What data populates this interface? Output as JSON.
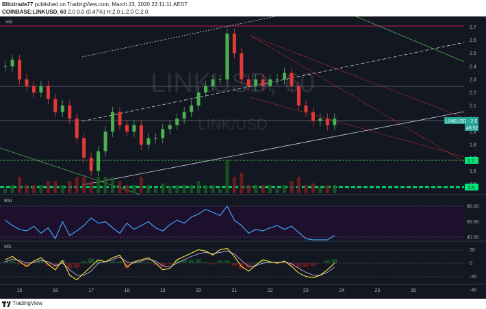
{
  "header": {
    "publisher": "Blitztrade77",
    "published_text": "published on TradingView.com, March 23, 2020 22:11:11 AEDT",
    "symbol": "COINBASE:LINKUSD, 60",
    "ohlc": "2.0 0.0 (0.47%) H:2.0 L:2.0 C:2.0"
  },
  "price_pane": {
    "vol_label": "Vol",
    "watermark_symbol": "LINKUSD, 60",
    "watermark_name": "LINK/USD",
    "axis_ticks": [
      "2.7",
      "2.6",
      "2.5",
      "2.4",
      "2.3",
      "2.2",
      "2.1",
      "2.0",
      "1.9",
      "1.8",
      "1.7",
      "1.6",
      "1.5"
    ],
    "last_price_tag": "LINKUSD · 2.0",
    "countdown_tag": "48:52",
    "level_tags": [
      "1.7",
      "1.5"
    ]
  },
  "rsi_pane": {
    "label": "RSI",
    "axis_ticks": [
      "80.00",
      "60.00",
      "40.00"
    ]
  },
  "macd_pane": {
    "label": "MS",
    "axis_ticks": [
      "20",
      "0",
      "-20",
      "-40"
    ]
  },
  "time_axis": {
    "labels": [
      "15",
      "16",
      "17",
      "18",
      "19",
      "20",
      "21",
      "22",
      "23",
      "24",
      "25",
      "26"
    ]
  },
  "footer": {
    "logo_text": "TradingView"
  },
  "chart_data": {
    "type": "line",
    "title": "COINBASE:LINKUSD, 60",
    "xlabel": "",
    "ylabel": "",
    "price_range": [
      1.45,
      2.75
    ],
    "x": [
      14.6,
      14.8,
      15.0,
      15.2,
      15.4,
      15.6,
      15.8,
      16.0,
      16.2,
      16.4,
      16.6,
      16.8,
      17.0,
      17.2,
      17.4,
      17.6,
      17.8,
      18.0,
      18.2,
      18.4,
      18.6,
      18.8,
      19.0,
      19.2,
      19.4,
      19.6,
      19.8,
      20.0,
      20.2,
      20.4,
      20.6,
      20.8,
      21.0,
      21.2,
      21.4,
      21.6,
      21.8,
      22.0,
      22.2,
      22.4,
      22.6,
      22.8,
      23.0,
      23.2,
      23.4,
      23.6,
      23.8
    ],
    "series": [
      {
        "name": "LINKUSD",
        "values": [
          2.4,
          2.45,
          2.3,
          2.25,
          2.2,
          2.25,
          2.15,
          2.05,
          2.1,
          2.0,
          1.85,
          1.7,
          1.6,
          1.75,
          1.9,
          2.05,
          1.95,
          1.9,
          1.95,
          1.8,
          1.85,
          1.85,
          1.92,
          1.95,
          2.0,
          2.05,
          2.1,
          2.2,
          2.25,
          2.3,
          2.3,
          2.65,
          2.5,
          2.3,
          2.25,
          2.3,
          2.25,
          2.3,
          2.3,
          2.35,
          2.25,
          2.1,
          2.05,
          1.98,
          2.0,
          1.95,
          2.0
        ]
      }
    ],
    "rsi": {
      "range": [
        20,
        90
      ],
      "levels": [
        70,
        30
      ],
      "values": [
        62,
        55,
        50,
        48,
        54,
        45,
        52,
        38,
        60,
        42,
        48,
        55,
        65,
        58,
        60,
        52,
        45,
        58,
        50,
        55,
        60,
        52,
        48,
        56,
        62,
        58,
        66,
        70,
        76,
        72,
        68,
        80,
        62,
        55,
        45,
        50,
        48,
        52,
        55,
        50,
        54,
        46,
        38,
        32,
        36,
        30,
        42
      ]
    },
    "macd": {
      "range": [
        -45,
        25
      ],
      "fast_values": [
        5,
        10,
        2,
        -5,
        3,
        8,
        -2,
        -10,
        4,
        -18,
        -25,
        -15,
        -5,
        5,
        2,
        8,
        12,
        -6,
        2,
        5,
        8,
        0,
        -10,
        -8,
        5,
        10,
        15,
        20,
        18,
        12,
        20,
        22,
        10,
        -5,
        -12,
        -3,
        5,
        2,
        0,
        3,
        -5,
        -15,
        -20,
        -22,
        -18,
        -10,
        0
      ],
      "slow_values": [
        2,
        6,
        4,
        0,
        1,
        4,
        2,
        -4,
        0,
        -10,
        -18,
        -18,
        -12,
        0,
        2,
        5,
        9,
        2,
        0,
        3,
        6,
        3,
        -4,
        -6,
        0,
        5,
        10,
        14,
        16,
        14,
        16,
        18,
        14,
        4,
        -5,
        -4,
        0,
        1,
        1,
        2,
        -1,
        -8,
        -14,
        -18,
        -18,
        -14,
        -6
      ]
    },
    "vol_levels": [
      1.7,
      1.5
    ]
  }
}
